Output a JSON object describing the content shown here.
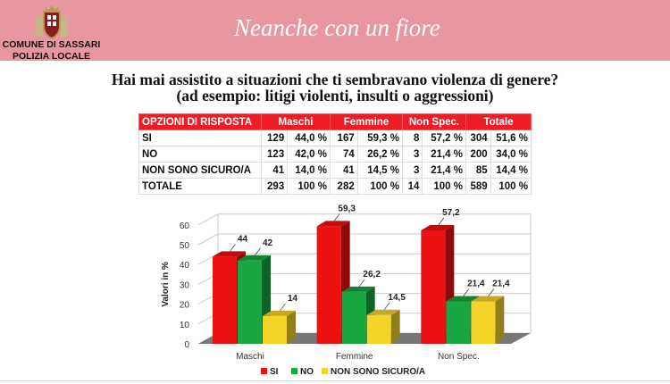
{
  "header": {
    "organization_line1": "COMUNE DI SASSARI",
    "organization_line2": "POLIZIA LOCALE",
    "slogan": "Neanche con un fiore",
    "band_color": "#e897a1"
  },
  "question": {
    "line1": "Hai mai assistito a situazioni che ti sembravano violenza di genere?",
    "line2": "(ad esempio: litigi violenti, insulti o aggressioni)"
  },
  "table": {
    "headers": [
      "OPZIONI DI RISPOSTA",
      "Maschi",
      "Femmine",
      "Non Spec.",
      "Totale"
    ],
    "rows": [
      [
        "SI",
        "129",
        "44,0 %",
        "167",
        "59,3 %",
        "8",
        "57,2 %",
        "304",
        "51,6 %"
      ],
      [
        "NO",
        "123",
        "42,0 %",
        "74",
        "26,2 %",
        "3",
        "21,4 %",
        "200",
        "34,0 %"
      ],
      [
        "NON SONO SICURO/A",
        "41",
        "14,0 %",
        "41",
        "14,5 %",
        "3",
        "21,4 %",
        "85",
        "14,4 %"
      ],
      [
        "TOTALE",
        "293",
        "100 %",
        "282",
        "100 %",
        "14",
        "100 %",
        "589",
        "100 %"
      ]
    ]
  },
  "chart_data": {
    "type": "bar",
    "style": "3d-clustered",
    "categories": [
      "Maschi",
      "Femmine",
      "Non Spec."
    ],
    "series": [
      {
        "name": "SI",
        "color": "#ee1111",
        "values": [
          44,
          59.3,
          57.2
        ],
        "labels": [
          "44",
          "59,3",
          "57,2"
        ]
      },
      {
        "name": "NO",
        "color": "#1aa640",
        "values": [
          42,
          26.2,
          21.4
        ],
        "labels": [
          "42",
          "26,2",
          "21,4"
        ]
      },
      {
        "name": "NON SONO SICURO/A",
        "color": "#f5d42a",
        "values": [
          14,
          14.5,
          21.4
        ],
        "labels": [
          "14",
          "14,5",
          "21,4"
        ]
      }
    ],
    "ylabel": "Valori in %",
    "ylim": [
      0,
      60
    ],
    "yticks": [
      "0",
      "10",
      "20",
      "30",
      "40",
      "50",
      "60"
    ],
    "grid": true,
    "legend": "bottom"
  }
}
